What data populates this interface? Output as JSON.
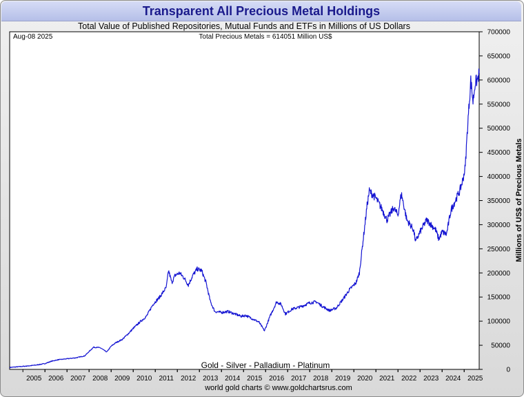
{
  "header": {
    "title": "Transparent All Precious Metal Holdings",
    "subtitle": "Total Value of Published Repositories, Mutual Funds and ETFs in Millions of US Dollars"
  },
  "plot": {
    "date_label": "Aug-08  2025",
    "total_label": "Total Precious Metals = 614051 Million US$",
    "metals_label": "Gold - Silver - Palladium - Platinum"
  },
  "footer": {
    "credit": "world gold charts © www.goldchartsrus.com"
  },
  "colors": {
    "line": "#1414d2",
    "title": "#1a1a8c",
    "plot_bg": "#ffffff"
  },
  "chart_data": {
    "type": "line",
    "title": "Transparent All Precious Metal Holdings",
    "subtitle": "Total Value of Published Repositories, Mutual Funds and ETFs in Millions of US Dollars",
    "xlabel": "",
    "ylabel": "Millions of US$ of Precious Metals",
    "xlim": [
      2004.4,
      2025.68
    ],
    "ylim": [
      0,
      700000
    ],
    "y_axis_side": "right",
    "grid": false,
    "x_ticks": [
      "2005",
      "2006",
      "2007",
      "2008",
      "2009",
      "2010",
      "2011",
      "2012",
      "2013",
      "2014",
      "2015",
      "2016",
      "2017",
      "2018",
      "2019",
      "2020",
      "2021",
      "2022",
      "2023",
      "2024",
      "2025"
    ],
    "y_ticks": [
      "0",
      "50000",
      "100000",
      "150000",
      "200000",
      "250000",
      "300000",
      "350000",
      "400000",
      "450000",
      "500000",
      "550000",
      "600000",
      "650000",
      "700000"
    ],
    "series": [
      {
        "values": [
          [
            2004.4,
            4000
          ],
          [
            2004.8,
            5500
          ],
          [
            2005.2,
            7000
          ],
          [
            2005.6,
            9000
          ],
          [
            2006.0,
            12000
          ],
          [
            2006.3,
            17000
          ],
          [
            2006.6,
            20000
          ],
          [
            2007.0,
            22000
          ],
          [
            2007.4,
            24000
          ],
          [
            2007.8,
            28000
          ],
          [
            2008.0,
            37000
          ],
          [
            2008.2,
            46000
          ],
          [
            2008.5,
            45000
          ],
          [
            2008.8,
            36000
          ],
          [
            2009.0,
            48000
          ],
          [
            2009.2,
            55000
          ],
          [
            2009.5,
            62000
          ],
          [
            2009.8,
            75000
          ],
          [
            2010.0,
            85000
          ],
          [
            2010.3,
            98000
          ],
          [
            2010.6,
            110000
          ],
          [
            2010.9,
            135000
          ],
          [
            2011.2,
            150000
          ],
          [
            2011.5,
            170000
          ],
          [
            2011.6,
            205000
          ],
          [
            2011.75,
            180000
          ],
          [
            2011.9,
            195000
          ],
          [
            2012.1,
            200000
          ],
          [
            2012.3,
            190000
          ],
          [
            2012.5,
            175000
          ],
          [
            2012.7,
            195000
          ],
          [
            2012.9,
            208000
          ],
          [
            2013.1,
            205000
          ],
          [
            2013.3,
            180000
          ],
          [
            2013.5,
            140000
          ],
          [
            2013.7,
            120000
          ],
          [
            2014.0,
            118000
          ],
          [
            2014.3,
            120000
          ],
          [
            2014.6,
            115000
          ],
          [
            2014.9,
            110000
          ],
          [
            2015.1,
            112000
          ],
          [
            2015.4,
            105000
          ],
          [
            2015.7,
            98000
          ],
          [
            2015.95,
            80000
          ],
          [
            2016.2,
            110000
          ],
          [
            2016.5,
            140000
          ],
          [
            2016.7,
            135000
          ],
          [
            2016.9,
            115000
          ],
          [
            2017.2,
            125000
          ],
          [
            2017.6,
            130000
          ],
          [
            2018.0,
            138000
          ],
          [
            2018.3,
            140000
          ],
          [
            2018.6,
            130000
          ],
          [
            2018.9,
            122000
          ],
          [
            2019.2,
            127000
          ],
          [
            2019.5,
            145000
          ],
          [
            2019.8,
            165000
          ],
          [
            2020.1,
            180000
          ],
          [
            2020.25,
            200000
          ],
          [
            2020.4,
            260000
          ],
          [
            2020.6,
            340000
          ],
          [
            2020.7,
            370000
          ],
          [
            2021.0,
            355000
          ],
          [
            2021.3,
            330000
          ],
          [
            2021.5,
            310000
          ],
          [
            2021.8,
            335000
          ],
          [
            2022.0,
            320000
          ],
          [
            2022.15,
            365000
          ],
          [
            2022.4,
            310000
          ],
          [
            2022.7,
            290000
          ],
          [
            2022.8,
            265000
          ],
          [
            2023.0,
            285000
          ],
          [
            2023.3,
            310000
          ],
          [
            2023.5,
            300000
          ],
          [
            2023.7,
            290000
          ],
          [
            2023.85,
            270000
          ],
          [
            2024.0,
            285000
          ],
          [
            2024.2,
            280000
          ],
          [
            2024.4,
            330000
          ],
          [
            2024.6,
            350000
          ],
          [
            2024.8,
            370000
          ],
          [
            2024.95,
            395000
          ],
          [
            2025.05,
            420000
          ],
          [
            2025.15,
            500000
          ],
          [
            2025.3,
            600000
          ],
          [
            2025.4,
            555000
          ],
          [
            2025.5,
            595000
          ],
          [
            2025.6,
            600000
          ],
          [
            2025.68,
            614051
          ]
        ]
      }
    ]
  }
}
